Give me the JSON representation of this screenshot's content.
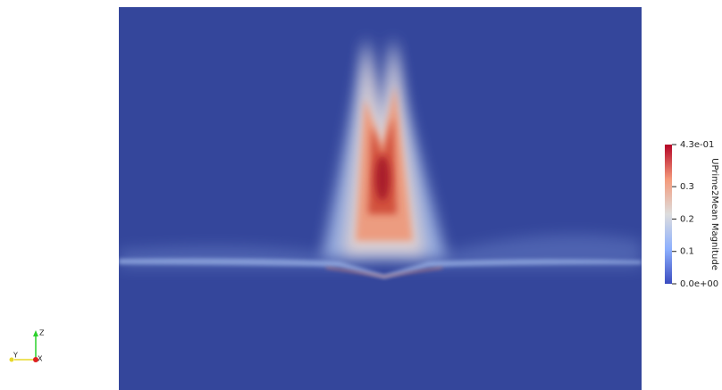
{
  "colorbar": {
    "title": "UPrime2Mean Magnitude",
    "range": [
      0,
      0.43
    ],
    "ticks": [
      {
        "value": 0.43,
        "label": "4.3e-01"
      },
      0.3,
      0.2,
      0.1,
      {
        "value": 0,
        "label": "0.0e+00"
      }
    ]
  },
  "axes_triad": {
    "labels": [
      "Z",
      "Y",
      "X"
    ]
  }
}
